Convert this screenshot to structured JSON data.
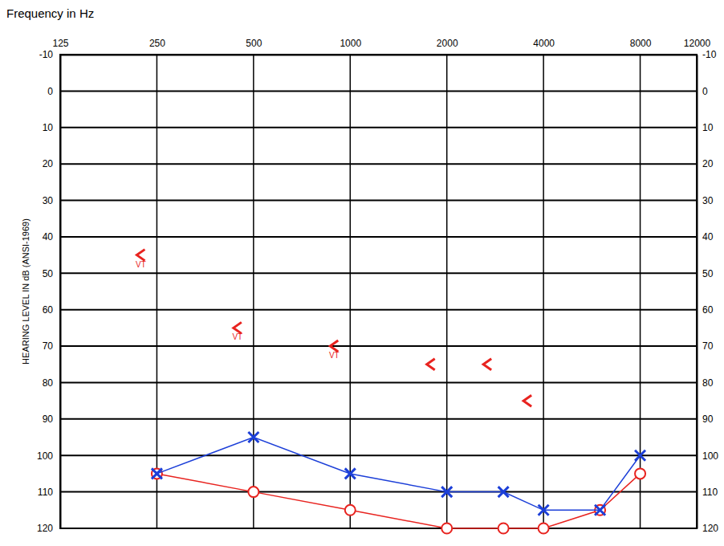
{
  "chart_data": {
    "type": "line",
    "xlabel": "Frequency in Hz",
    "ylabel": "HEARING LEVEL IN dB (ANSI-1969)",
    "log": "x",
    "grid": true,
    "x": [
      250,
      500,
      1000,
      2000,
      3000,
      4000,
      6000,
      8000
    ],
    "xlim": [
      125,
      12000
    ],
    "xticks": [
      125,
      250,
      500,
      1000,
      2000,
      4000,
      8000,
      12000
    ],
    "ylim": [
      120,
      -10
    ],
    "yticks": [
      -10,
      0,
      10,
      20,
      30,
      40,
      50,
      60,
      70,
      80,
      90,
      100,
      110,
      120
    ],
    "series": [
      {
        "color": "#e8231f",
        "marker": "circle",
        "line_style": "solid",
        "values": [
          105,
          110,
          115,
          120,
          120,
          120,
          115,
          105
        ]
      },
      {
        "color": "#1c3fd8",
        "marker": "x",
        "line_style": "solid",
        "values": [
          105,
          95,
          105,
          110,
          110,
          115,
          115,
          100
        ]
      },
      {
        "color": "#e8231f",
        "marker": "<",
        "line_style": "none",
        "values": [
          45,
          65,
          70,
          75,
          75,
          85,
          null,
          null
        ]
      }
    ],
    "annotations": [
      {
        "text": "VT",
        "x": 250,
        "y": 45,
        "color": "#e8231f"
      },
      {
        "text": "VT",
        "x": 500,
        "y": 65,
        "color": "#e8231f"
      },
      {
        "text": "VT",
        "x": 1000,
        "y": 70,
        "color": "#e8231f"
      }
    ]
  }
}
